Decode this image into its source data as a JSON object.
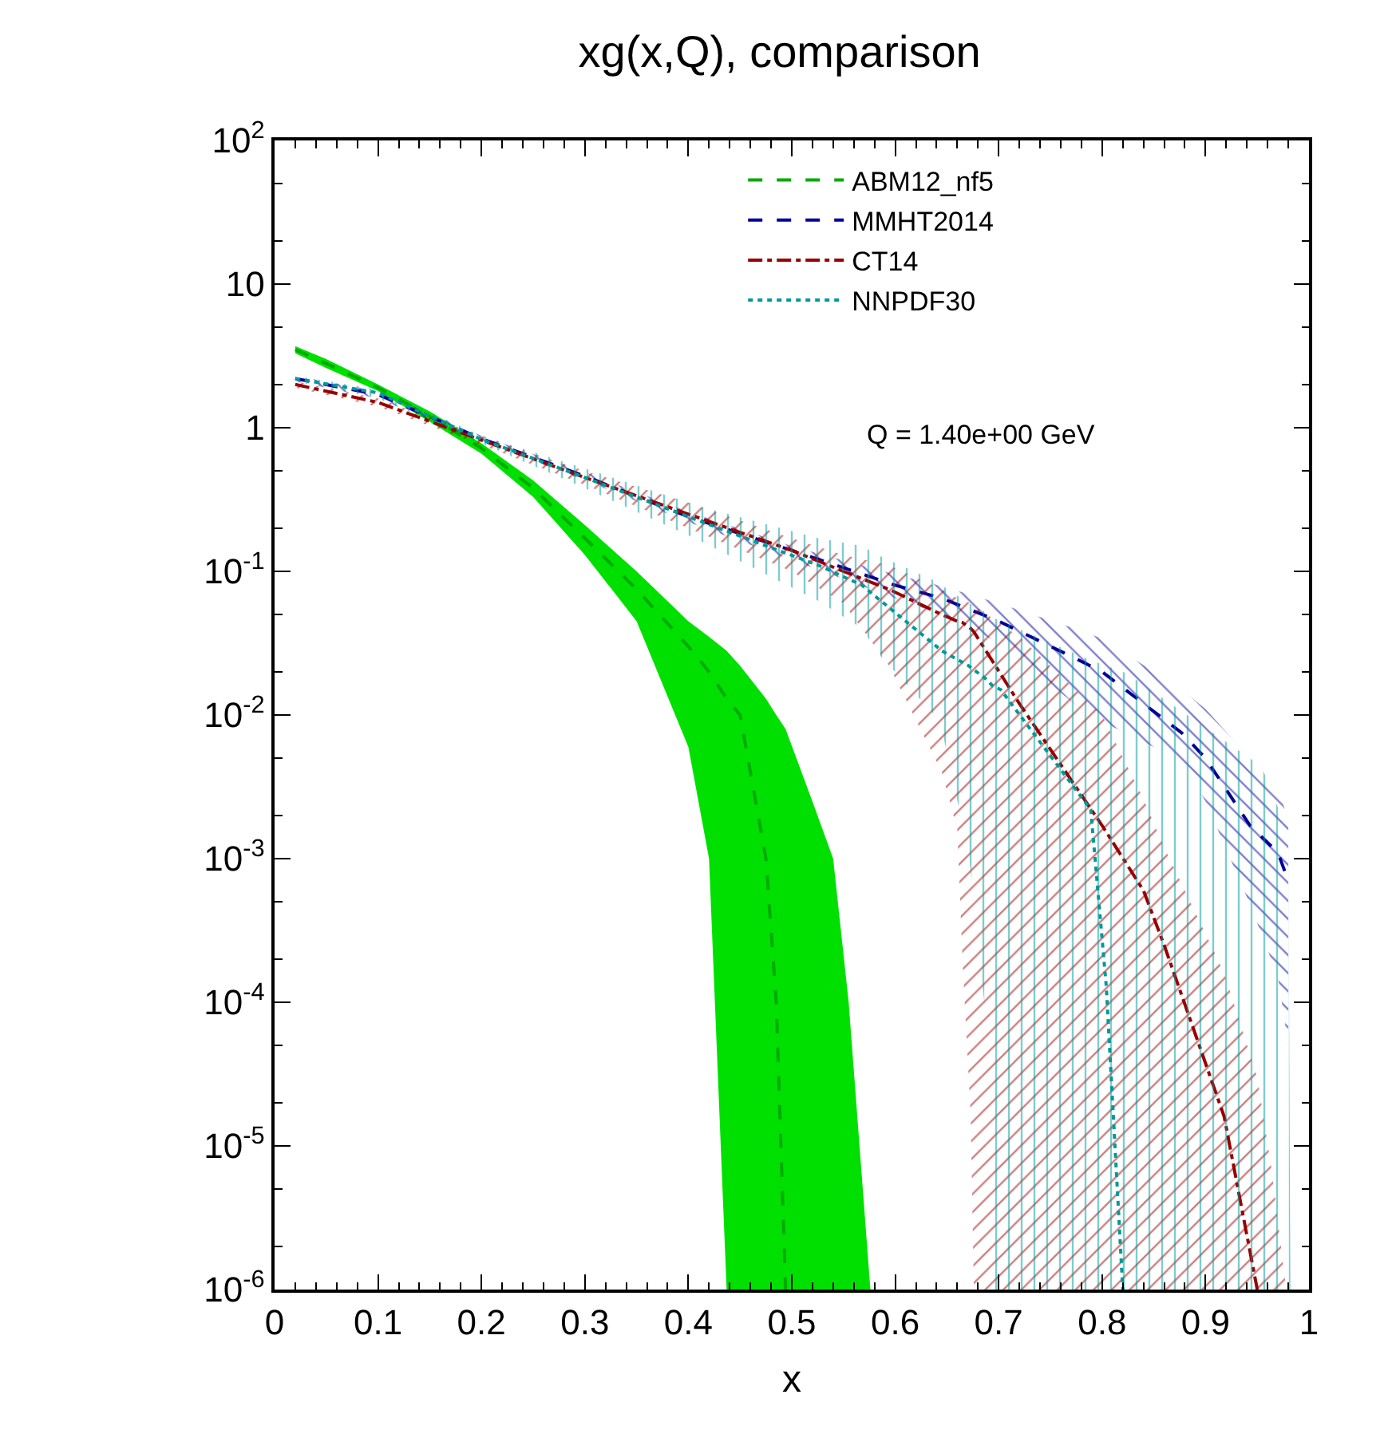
{
  "chart_data": {
    "type": "line",
    "title": "xg(x,Q), comparison",
    "xlabel": "x",
    "annotations": [
      "Q = 1.40e+00 GeV"
    ],
    "xlim": [
      0,
      1
    ],
    "xticks": [
      0,
      0.1,
      0.2,
      0.3,
      0.4,
      0.5,
      0.6,
      0.7,
      0.8,
      0.9,
      1
    ],
    "ylim": [
      1e-06,
      100
    ],
    "log": true,
    "yticks": [
      {
        "value": 1e-06,
        "label": "10$^{-6}$"
      },
      {
        "value": 1e-05,
        "label": "10$^{-5}$"
      },
      {
        "value": 0.0001,
        "label": "10$^{-4}$"
      },
      {
        "value": 0.001,
        "label": "10$^{-3}$"
      },
      {
        "value": 0.01,
        "label": "10$^{-2}$"
      },
      {
        "value": 0.1,
        "label": "10$^{-1}$"
      },
      {
        "value": 1,
        "label": "1"
      },
      {
        "value": 10,
        "label": "10"
      },
      {
        "value": 100,
        "label": "10$^{2}$"
      }
    ],
    "legend": "top right",
    "marker": "none",
    "series": [
      {
        "name": "ABM12_nf5",
        "color": "#00aa00",
        "line_style": "dashed",
        "x": [
          0.02,
          0.05,
          0.1,
          0.15,
          0.2,
          0.25,
          0.3,
          0.35,
          0.4,
          0.42,
          0.437,
          0.45,
          0.475,
          0.485,
          0.494,
          0.52,
          0.54,
          0.555,
          0.576
        ],
        "values": [
          3.5,
          2.8,
          1.9,
          1.2,
          0.72,
          0.38,
          0.17,
          0.075,
          0.03,
          0.02,
          0.013,
          0.01,
          0.001,
          0.0001,
          1e-06,
          null,
          null,
          null,
          null
        ],
        "lower": [
          3.3,
          2.6,
          1.8,
          1.1,
          0.66,
          0.33,
          0.13,
          0.045,
          0.006,
          0.001,
          1e-06,
          1e-06,
          1e-06,
          1e-06,
          1e-06,
          1e-06,
          1e-06,
          1e-06,
          1e-06
        ],
        "upper": [
          3.7,
          3.0,
          2.0,
          1.3,
          0.78,
          0.43,
          0.21,
          0.1,
          0.045,
          0.035,
          0.028,
          0.022,
          0.013,
          0.01,
          0.008,
          0.0025,
          0.001,
          0.0001,
          1e-06
        ]
      },
      {
        "name": "MMHT2014",
        "color": "#000099",
        "line_style": "dashed",
        "x": [
          0.02,
          0.1,
          0.2,
          0.3,
          0.4,
          0.5,
          0.6,
          0.645,
          0.7,
          0.773,
          0.8,
          0.877,
          0.9,
          0.943,
          0.97,
          0.98
        ],
        "values": [
          2.2,
          1.7,
          0.84,
          0.46,
          0.24,
          0.14,
          0.08,
          0.065,
          0.045,
          0.025,
          0.02,
          0.0075,
          0.005,
          0.0017,
          0.0011,
          0.0007
        ],
        "lower": [
          2.1,
          1.6,
          0.8,
          0.43,
          0.22,
          0.12,
          0.065,
          0.05,
          0.032,
          0.012,
          0.009,
          0.0048,
          0.0025,
          0.00048,
          0.00015,
          5e-05
        ],
        "upper": [
          2.3,
          1.8,
          0.88,
          0.49,
          0.26,
          0.15,
          0.095,
          0.079,
          0.06,
          0.04,
          0.034,
          0.015,
          0.011,
          0.005,
          0.003,
          0.0019
        ]
      },
      {
        "name": "CT14",
        "color": "#990000",
        "line_style": "dashdot",
        "x": [
          0.02,
          0.1,
          0.2,
          0.3,
          0.4,
          0.5,
          0.55,
          0.594,
          0.645,
          0.66,
          0.665,
          0.673,
          0.676,
          0.72,
          0.8,
          0.84,
          0.86,
          0.918,
          0.95,
          0.964,
          0.978
        ],
        "values": [
          2.0,
          1.5,
          0.82,
          0.45,
          0.25,
          0.14,
          0.1,
          0.075,
          0.05,
          0.045,
          0.044,
          0.04,
          0.038,
          0.012,
          0.0017,
          0.0006,
          0.00025,
          1.6e-05,
          1e-06,
          null,
          null
        ],
        "lower": [
          1.9,
          1.4,
          0.76,
          0.4,
          0.2,
          0.1,
          0.06,
          0.022,
          0.004,
          0.0016,
          0.0002,
          1.6e-05,
          1e-06,
          1e-06,
          1e-06,
          1e-06,
          1e-06,
          1e-06,
          1e-06,
          1e-06,
          1e-06
        ],
        "upper": [
          2.1,
          1.6,
          0.88,
          0.5,
          0.3,
          0.17,
          0.13,
          0.11,
          0.075,
          0.065,
          0.063,
          0.06,
          0.058,
          0.035,
          0.01,
          0.0026,
          0.0012,
          0.00016,
          3e-05,
          6.8e-06,
          1e-06
        ]
      },
      {
        "name": "NNPDF30",
        "color": "#009999",
        "line_style": "dotted",
        "x": [
          0.02,
          0.1,
          0.2,
          0.3,
          0.414,
          0.526,
          0.568,
          0.583,
          0.64,
          0.645,
          0.671,
          0.687,
          0.694,
          0.702,
          0.789,
          0.804,
          0.82,
          0.826,
          0.954,
          0.98,
          0.982
        ],
        "values": [
          2.2,
          1.75,
          0.83,
          0.45,
          0.22,
          0.11,
          0.08,
          0.065,
          0.03,
          0.028,
          0.022,
          0.018,
          0.016,
          0.015,
          0.0022,
          0.00013,
          1e-06,
          null,
          null,
          null,
          null
        ],
        "lower": [
          2.1,
          1.6,
          0.78,
          0.38,
          0.16,
          0.062,
          0.04,
          0.027,
          0.0097,
          0.008,
          0.0011,
          8.7e-05,
          1e-06,
          1e-06,
          1e-06,
          1e-06,
          1e-06,
          1e-06,
          1e-06,
          1e-06,
          1e-06
        ],
        "upper": [
          2.3,
          1.85,
          0.88,
          0.52,
          0.28,
          0.17,
          0.15,
          0.13,
          0.085,
          0.08,
          0.06,
          0.052,
          0.048,
          0.045,
          0.024,
          0.022,
          0.02,
          0.019,
          0.0044,
          0.0015,
          1e-06
        ]
      }
    ]
  }
}
